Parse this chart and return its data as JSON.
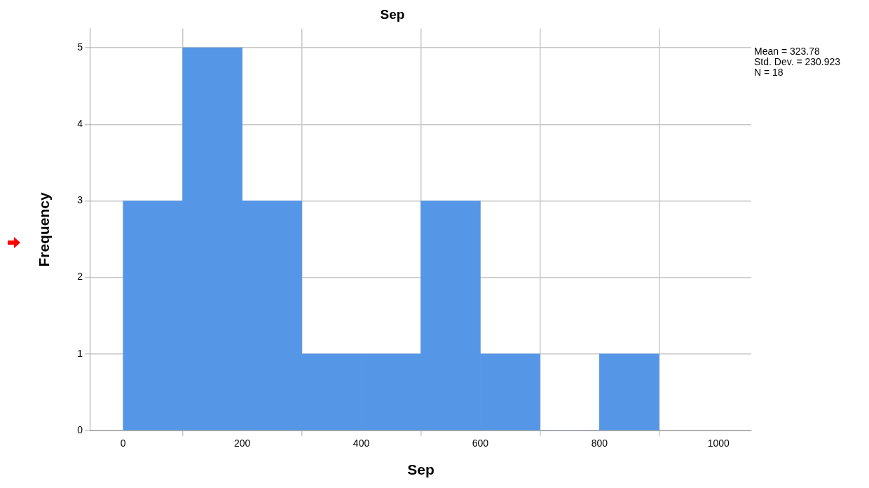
{
  "chart_data": {
    "type": "histogram",
    "title": "Sep",
    "xlabel": "Sep",
    "ylabel": "Frequency",
    "bins": [
      0,
      100,
      200,
      300,
      400,
      500,
      600,
      700,
      800,
      900
    ],
    "values": [
      3,
      5,
      3,
      1,
      1,
      3,
      1,
      0,
      1
    ],
    "color": "#5596e6",
    "xlim": [
      -55,
      1055
    ],
    "xticks": [
      0,
      200,
      400,
      600,
      800,
      1000
    ],
    "ylim": [
      0,
      5.25
    ],
    "yticks": [
      0,
      1,
      2,
      3,
      4,
      5
    ],
    "grid": true,
    "annotations": [
      "Mean = 323.78",
      "Std. Dev. = 230.923",
      "N = 18"
    ]
  }
}
